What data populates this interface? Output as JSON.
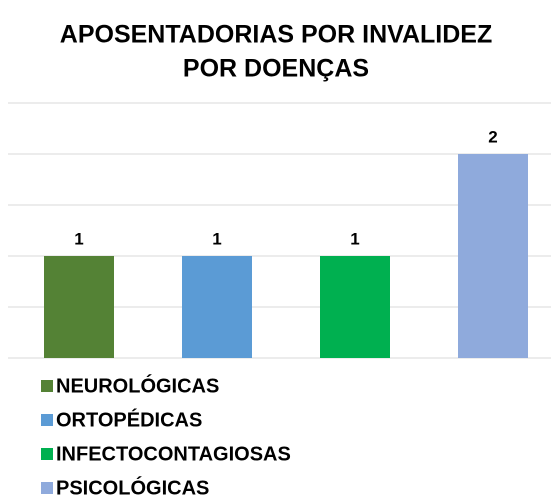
{
  "chart_data": {
    "type": "bar",
    "title": [
      "APOSENTADORIAS POR INVALIDEZ",
      "POR DOENÇAS"
    ],
    "categories": [
      "NEUROLÓGICAS",
      "ORTOPÉDICAS",
      "INFECTOCONTAGIOSAS",
      "PSICOLÓGICAS"
    ],
    "values": [
      1,
      1,
      1,
      2
    ],
    "colors": [
      "#548235",
      "#5b9bd5",
      "#00b050",
      "#8faadc"
    ],
    "ylim": [
      0,
      2.5
    ],
    "yticks": [
      0,
      0.5,
      1,
      1.5,
      2,
      2.5
    ],
    "grid": true,
    "legend": "bottom-left"
  }
}
